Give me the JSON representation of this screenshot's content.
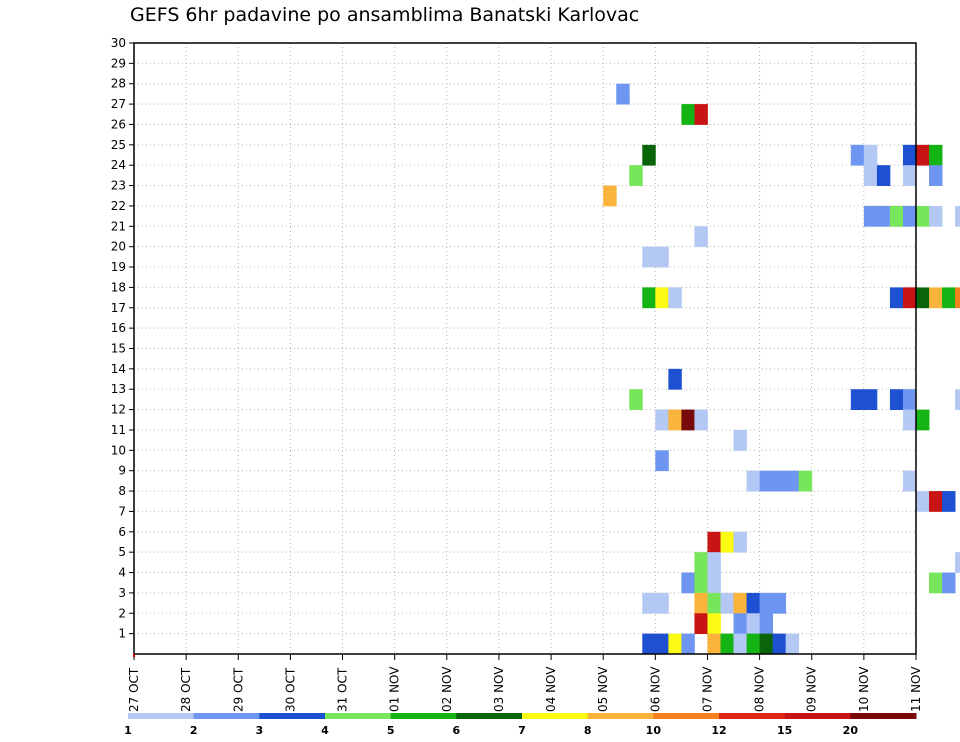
{
  "chart_data": {
    "type": "heatmap",
    "title": "GEFS 6hr padavine po ansamblima Banatski Karlovac",
    "xlabel": "",
    "ylabel": "",
    "x_ticks": [
      "27 OCT",
      "28 OCT",
      "29 OCT",
      "30 OCT",
      "31 OCT",
      "01 NOV",
      "02 NOV",
      "03 NOV",
      "04 NOV",
      "05 NOV",
      "06 NOV",
      "07 NOV",
      "08 NOV",
      "09 NOV",
      "10 NOV",
      "11 NOV"
    ],
    "y_ticks": [
      "1",
      "2",
      "3",
      "4",
      "5",
      "6",
      "7",
      "8",
      "9",
      "10",
      "11",
      "12",
      "13",
      "14",
      "15",
      "16",
      "17",
      "18",
      "19",
      "20",
      "21",
      "22",
      "23",
      "24",
      "25",
      "26",
      "27",
      "28",
      "29",
      "30"
    ],
    "ylim": [
      0,
      30
    ],
    "x_steps_per_day": 4,
    "grid": true,
    "legend_placement": "bottom",
    "legend": {
      "labels": [
        "1",
        "2",
        "3",
        "4",
        "5",
        "6",
        "7",
        "8",
        "10",
        "12",
        "15",
        "20"
      ],
      "colors": [
        "#b4c8f5",
        "#6e96f0",
        "#1e50d2",
        "#78e65a",
        "#14b414",
        "#0a640a",
        "#fafa14",
        "#fab43c",
        "#f5821e",
        "#dc2814",
        "#c81414",
        "#780a0a"
      ]
    },
    "axis_color": "#000000",
    "grid_color": "#b4b4b4",
    "mark_color": "#dc0000",
    "cells": [
      {
        "day": 9.25,
        "ens": 27,
        "v": 2
      },
      {
        "day": 10.5,
        "ens": 26,
        "v": 5
      },
      {
        "day": 10.75,
        "ens": 26,
        "v": 15
      },
      {
        "day": 9.75,
        "ens": 24,
        "v": 6
      },
      {
        "day": 13.75,
        "ens": 24,
        "v": 2
      },
      {
        "day": 14.0,
        "ens": 24,
        "v": 1
      },
      {
        "day": 14.75,
        "ens": 24,
        "v": 3
      },
      {
        "day": 15.0,
        "ens": 24,
        "v": 15
      },
      {
        "day": 15.25,
        "ens": 24,
        "v": 5
      },
      {
        "day": 9.5,
        "ens": 23,
        "v": 4
      },
      {
        "day": 14.0,
        "ens": 23,
        "v": 1
      },
      {
        "day": 14.25,
        "ens": 23,
        "v": 3
      },
      {
        "day": 14.75,
        "ens": 23,
        "v": 1
      },
      {
        "day": 15.25,
        "ens": 23,
        "v": 2
      },
      {
        "day": 9.0,
        "ens": 22,
        "v": 8
      },
      {
        "day": 14.0,
        "ens": 21,
        "v": 2
      },
      {
        "day": 14.25,
        "ens": 21,
        "v": 2
      },
      {
        "day": 14.5,
        "ens": 21,
        "v": 4
      },
      {
        "day": 14.75,
        "ens": 21,
        "v": 2
      },
      {
        "day": 15.0,
        "ens": 21,
        "v": 4
      },
      {
        "day": 15.25,
        "ens": 21,
        "v": 1
      },
      {
        "day": 15.75,
        "ens": 21,
        "v": 1
      },
      {
        "day": 10.75,
        "ens": 20,
        "v": 1
      },
      {
        "day": 9.75,
        "ens": 19,
        "v": 1
      },
      {
        "day": 10.0,
        "ens": 19,
        "v": 1
      },
      {
        "day": 9.75,
        "ens": 17,
        "v": 5
      },
      {
        "day": 10.0,
        "ens": 17,
        "v": 7
      },
      {
        "day": 10.25,
        "ens": 17,
        "v": 1
      },
      {
        "day": 14.5,
        "ens": 17,
        "v": 3
      },
      {
        "day": 14.75,
        "ens": 17,
        "v": 15
      },
      {
        "day": 15.0,
        "ens": 17,
        "v": 6
      },
      {
        "day": 15.25,
        "ens": 17,
        "v": 8
      },
      {
        "day": 15.5,
        "ens": 17,
        "v": 5
      },
      {
        "day": 15.75,
        "ens": 17,
        "v": 10
      },
      {
        "day": 16.0,
        "ens": 17,
        "v": 10
      },
      {
        "day": 16.25,
        "ens": 17,
        "v": 7
      },
      {
        "day": 16.5,
        "ens": 17,
        "v": 7
      },
      {
        "day": 16.75,
        "ens": 17,
        "v": 1
      },
      {
        "day": 10.25,
        "ens": 13,
        "v": 3
      },
      {
        "day": 9.5,
        "ens": 12,
        "v": 4
      },
      {
        "day": 13.75,
        "ens": 12,
        "v": 3
      },
      {
        "day": 14.0,
        "ens": 12,
        "v": 3
      },
      {
        "day": 14.5,
        "ens": 12,
        "v": 3
      },
      {
        "day": 14.75,
        "ens": 12,
        "v": 2
      },
      {
        "day": 15.75,
        "ens": 12,
        "v": 1
      },
      {
        "day": 16.0,
        "ens": 12,
        "v": 7
      },
      {
        "day": 16.25,
        "ens": 12,
        "v": 2
      },
      {
        "day": 10.0,
        "ens": 11,
        "v": 1
      },
      {
        "day": 10.25,
        "ens": 11,
        "v": 8
      },
      {
        "day": 10.5,
        "ens": 11,
        "v": 20
      },
      {
        "day": 10.75,
        "ens": 11,
        "v": 1
      },
      {
        "day": 14.75,
        "ens": 11,
        "v": 1
      },
      {
        "day": 15.0,
        "ens": 11,
        "v": 5
      },
      {
        "day": 16.5,
        "ens": 11,
        "v": 3
      },
      {
        "day": 16.75,
        "ens": 11,
        "v": 15
      },
      {
        "day": 11.5,
        "ens": 10,
        "v": 1
      },
      {
        "day": 10.0,
        "ens": 9,
        "v": 2
      },
      {
        "day": 11.75,
        "ens": 8,
        "v": 1
      },
      {
        "day": 12.0,
        "ens": 8,
        "v": 2
      },
      {
        "day": 12.25,
        "ens": 8,
        "v": 2
      },
      {
        "day": 12.5,
        "ens": 8,
        "v": 2
      },
      {
        "day": 12.75,
        "ens": 8,
        "v": 4
      },
      {
        "day": 14.75,
        "ens": 8,
        "v": 1
      },
      {
        "day": 15.0,
        "ens": 7,
        "v": 1
      },
      {
        "day": 15.25,
        "ens": 7,
        "v": 15
      },
      {
        "day": 15.5,
        "ens": 7,
        "v": 3
      },
      {
        "day": 16.75,
        "ens": 6,
        "v": 2
      },
      {
        "day": 11.0,
        "ens": 5,
        "v": 15
      },
      {
        "day": 11.25,
        "ens": 5,
        "v": 7
      },
      {
        "day": 11.5,
        "ens": 5,
        "v": 1
      },
      {
        "day": 10.75,
        "ens": 4,
        "v": 4
      },
      {
        "day": 11.0,
        "ens": 4,
        "v": 1
      },
      {
        "day": 15.75,
        "ens": 4,
        "v": 1
      },
      {
        "day": 10.5,
        "ens": 3,
        "v": 2
      },
      {
        "day": 10.75,
        "ens": 3,
        "v": 4
      },
      {
        "day": 11.0,
        "ens": 3,
        "v": 1
      },
      {
        "day": 15.25,
        "ens": 3,
        "v": 4
      },
      {
        "day": 15.5,
        "ens": 3,
        "v": 2
      },
      {
        "day": 16.25,
        "ens": 3,
        "v": 1
      },
      {
        "day": 9.75,
        "ens": 2,
        "v": 1
      },
      {
        "day": 10.0,
        "ens": 2,
        "v": 1
      },
      {
        "day": 10.75,
        "ens": 2,
        "v": 8
      },
      {
        "day": 11.0,
        "ens": 2,
        "v": 4
      },
      {
        "day": 11.25,
        "ens": 2,
        "v": 1
      },
      {
        "day": 11.5,
        "ens": 2,
        "v": 8
      },
      {
        "day": 11.75,
        "ens": 2,
        "v": 3
      },
      {
        "day": 12.0,
        "ens": 2,
        "v": 2
      },
      {
        "day": 12.25,
        "ens": 2,
        "v": 2
      },
      {
        "day": 10.75,
        "ens": 1,
        "v": 15
      },
      {
        "day": 11.0,
        "ens": 1,
        "v": 7
      },
      {
        "day": 11.5,
        "ens": 1,
        "v": 2
      },
      {
        "day": 11.75,
        "ens": 1,
        "v": 1
      },
      {
        "day": 12.0,
        "ens": 1,
        "v": 2
      },
      {
        "day": 9.75,
        "ens": 0,
        "v": 3
      },
      {
        "day": 10.0,
        "ens": 0,
        "v": 3
      },
      {
        "day": 10.25,
        "ens": 0,
        "v": 7
      },
      {
        "day": 10.5,
        "ens": 0,
        "v": 2
      },
      {
        "day": 11.0,
        "ens": 0,
        "v": 8
      },
      {
        "day": 11.25,
        "ens": 0,
        "v": 5
      },
      {
        "day": 11.5,
        "ens": 0,
        "v": 1
      },
      {
        "day": 11.75,
        "ens": 0,
        "v": 5
      },
      {
        "day": 12.0,
        "ens": 0,
        "v": 6
      },
      {
        "day": 12.25,
        "ens": 0,
        "v": 3
      },
      {
        "day": 12.5,
        "ens": 0,
        "v": 1
      }
    ]
  }
}
